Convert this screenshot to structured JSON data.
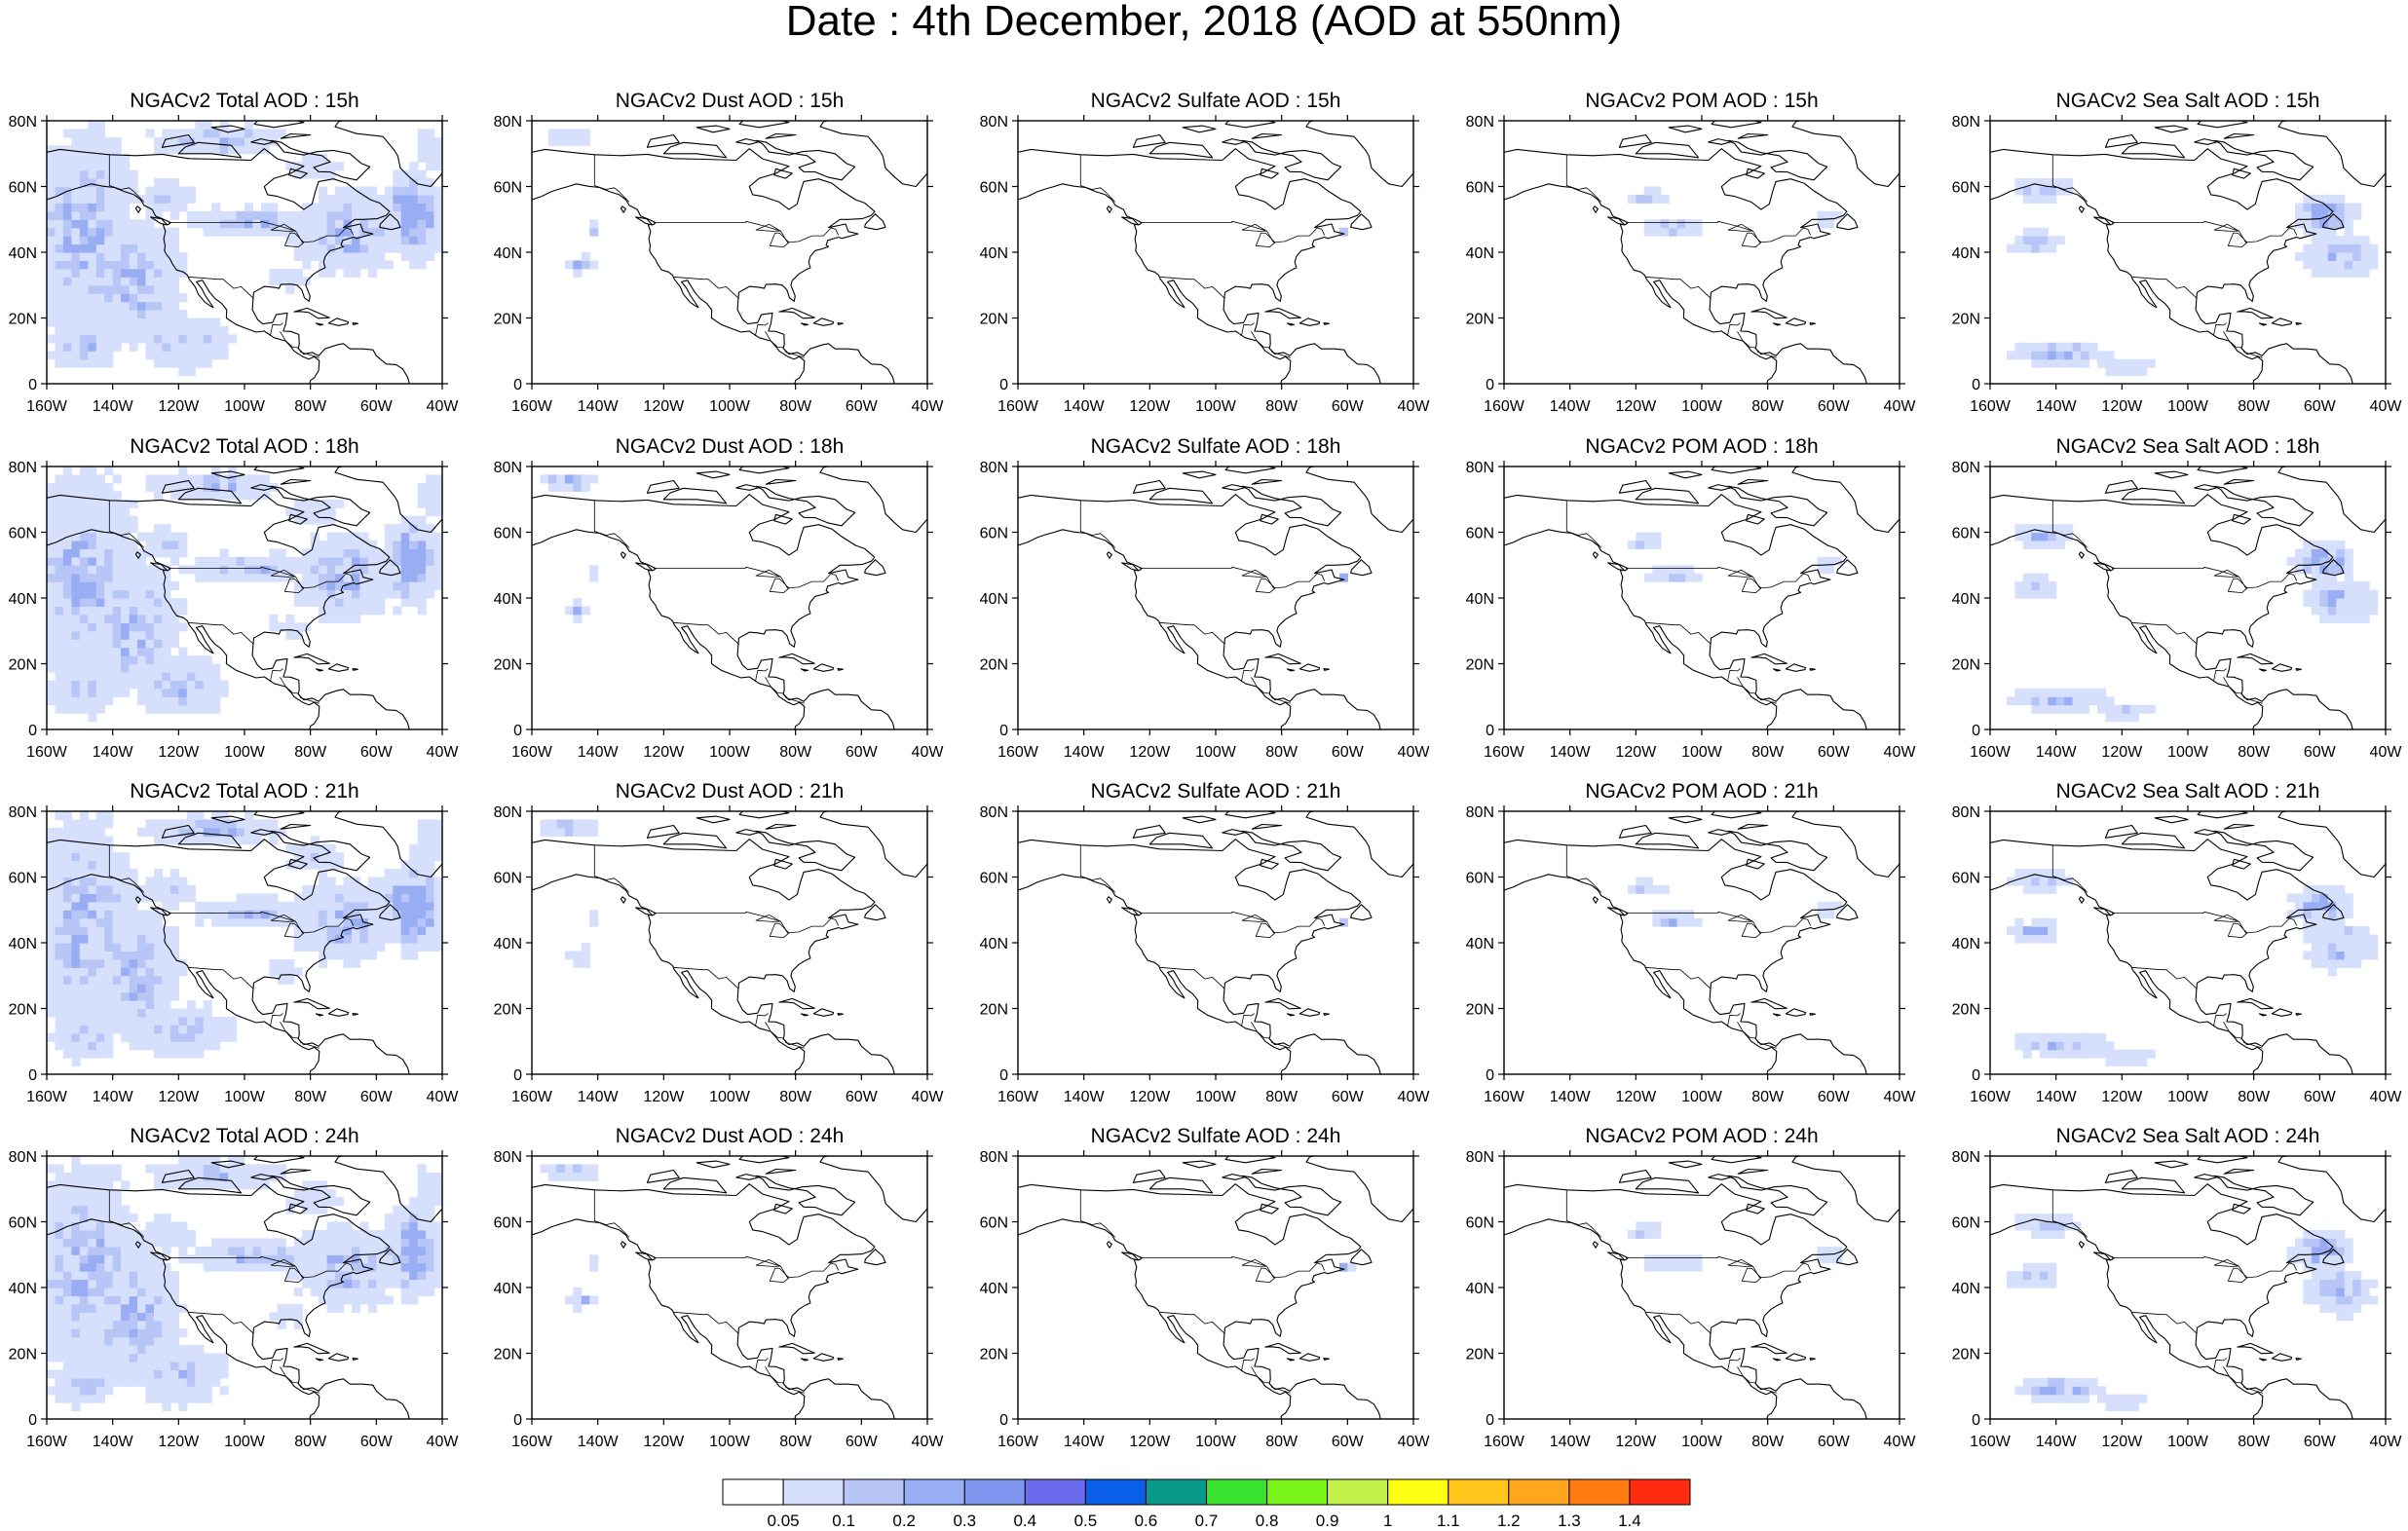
{
  "title": "Date : 4th December, 2018 (AOD at 550nm)",
  "lon_ticks": [
    "160W",
    "140W",
    "120W",
    "100W",
    "80W",
    "60W",
    "40W"
  ],
  "lat_ticks": [
    "0",
    "20N",
    "40N",
    "60N",
    "80N"
  ],
  "map_extent": {
    "lon": [
      -160,
      -40
    ],
    "lat": [
      0,
      80
    ]
  },
  "shading_color": "#9fb3f2",
  "panels": [
    {
      "title": "NGACv2 Total AOD : 15h",
      "field": "total",
      "hour": "15h",
      "intensity": 0.55
    },
    {
      "title": "NGACv2 Dust AOD : 15h",
      "field": "dust",
      "hour": "15h",
      "intensity": 0.15
    },
    {
      "title": "NGACv2 Sulfate AOD : 15h",
      "field": "sulfate",
      "hour": "15h",
      "intensity": 0.05
    },
    {
      "title": "NGACv2 POM AOD : 15h",
      "field": "pom",
      "hour": "15h",
      "intensity": 0.2
    },
    {
      "title": "NGACv2 Sea Salt AOD : 15h",
      "field": "seasalt",
      "hour": "15h",
      "intensity": 0.35
    },
    {
      "title": "NGACv2 Total AOD : 18h",
      "field": "total",
      "hour": "18h",
      "intensity": 0.6
    },
    {
      "title": "NGACv2 Dust AOD : 18h",
      "field": "dust",
      "hour": "18h",
      "intensity": 0.15
    },
    {
      "title": "NGACv2 Sulfate AOD : 18h",
      "field": "sulfate",
      "hour": "18h",
      "intensity": 0.05
    },
    {
      "title": "NGACv2 POM AOD : 18h",
      "field": "pom",
      "hour": "18h",
      "intensity": 0.2
    },
    {
      "title": "NGACv2 Sea Salt AOD : 18h",
      "field": "seasalt",
      "hour": "18h",
      "intensity": 0.4
    },
    {
      "title": "NGACv2 Total AOD : 21h",
      "field": "total",
      "hour": "21h",
      "intensity": 0.65
    },
    {
      "title": "NGACv2 Dust AOD : 21h",
      "field": "dust",
      "hour": "21h",
      "intensity": 0.15
    },
    {
      "title": "NGACv2 Sulfate AOD : 21h",
      "field": "sulfate",
      "hour": "21h",
      "intensity": 0.05
    },
    {
      "title": "NGACv2 POM AOD : 21h",
      "field": "pom",
      "hour": "21h",
      "intensity": 0.2
    },
    {
      "title": "NGACv2 Sea Salt AOD : 21h",
      "field": "seasalt",
      "hour": "21h",
      "intensity": 0.45
    },
    {
      "title": "NGACv2 Total AOD : 24h",
      "field": "total",
      "hour": "24h",
      "intensity": 0.7
    },
    {
      "title": "NGACv2 Dust AOD : 24h",
      "field": "dust",
      "hour": "24h",
      "intensity": 0.15
    },
    {
      "title": "NGACv2 Sulfate AOD : 24h",
      "field": "sulfate",
      "hour": "24h",
      "intensity": 0.05
    },
    {
      "title": "NGACv2 POM AOD : 24h",
      "field": "pom",
      "hour": "24h",
      "intensity": 0.2
    },
    {
      "title": "NGACv2 Sea Salt  AOD : 24h",
      "field": "seasalt",
      "hour": "24h",
      "intensity": 0.5
    }
  ],
  "colorbar": {
    "colors": [
      "#ffffff",
      "#d6e0fc",
      "#b7c6f7",
      "#98adf3",
      "#7f96f0",
      "#6a6aec",
      "#0a5fe8",
      "#0a9a8c",
      "#39e22f",
      "#79f41a",
      "#c3f34a",
      "#ffff11",
      "#ffc51a",
      "#ffa51e",
      "#ff7a0f",
      "#ff2a10"
    ],
    "labels": [
      "0.05",
      "0.1",
      "0.2",
      "0.3",
      "0.4",
      "0.5",
      "0.6",
      "0.7",
      "0.8",
      "0.9",
      "1",
      "1.1",
      "1.2",
      "1.3",
      "1.4"
    ]
  }
}
